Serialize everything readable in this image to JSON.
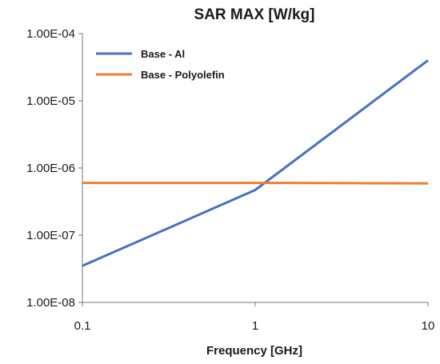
{
  "chart_data": {
    "type": "line",
    "title": "SAR MAX [W/kg]",
    "xlabel": "Frequency [GHz]",
    "ylabel": "",
    "x_scale": "log",
    "y_scale": "log",
    "xlim": [
      0.1,
      10
    ],
    "ylim": [
      1e-08,
      0.0001
    ],
    "x_tick_labels": [
      "0.1",
      "1",
      "10"
    ],
    "x_tick_values": [
      0.1,
      1,
      10
    ],
    "y_tick_labels": [
      "1.00E-08",
      "1.00E-07",
      "1.00E-06",
      "1.00E-05",
      "1.00E-04"
    ],
    "y_tick_values": [
      1e-08,
      1e-07,
      1e-06,
      1e-05,
      0.0001
    ],
    "grid": false,
    "legend_position": "top-left",
    "series": [
      {
        "name": "Base - Al",
        "color": "#4472C4",
        "x": [
          0.1,
          1,
          10
        ],
        "y": [
          3.5e-08,
          4.7e-07,
          4e-05
        ]
      },
      {
        "name": "Base - Polyolefin",
        "color": "#ED7D31",
        "x": [
          0.1,
          1,
          10
        ],
        "y": [
          6e-07,
          6e-07,
          5.9e-07
        ]
      }
    ]
  }
}
